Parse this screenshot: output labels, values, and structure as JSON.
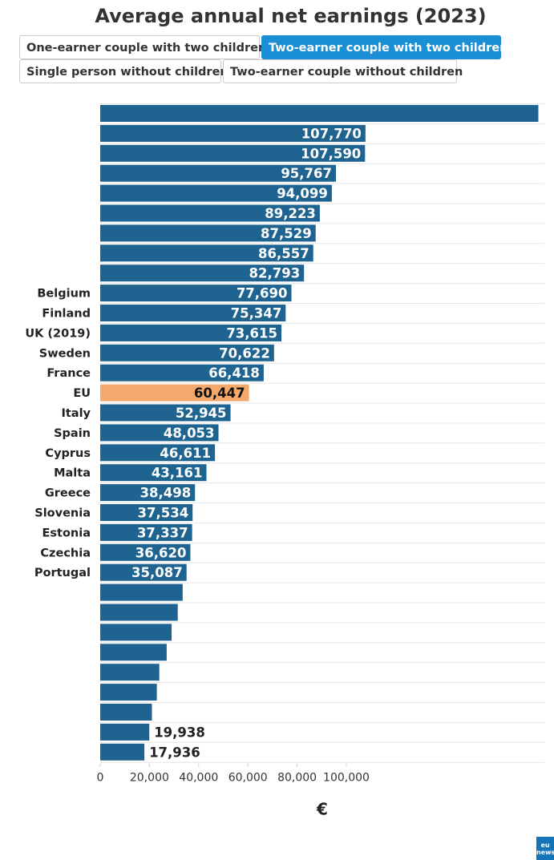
{
  "title": "Average annual net earnings (2023)",
  "tabs": [
    {
      "label": "One-earner couple with two children",
      "active": false
    },
    {
      "label": "Two-earner couple with two children",
      "active": true
    },
    {
      "label": "Single person without children",
      "active": false
    },
    {
      "label": "Two-earner couple without children",
      "active": false
    }
  ],
  "colors": {
    "bar": "#1f6391",
    "highlight": "#f2a96b",
    "accent": "#1a8fd5"
  },
  "logo": "eu news",
  "chart_data": {
    "type": "bar",
    "orientation": "horizontal",
    "xlabel": "€",
    "xlim": [
      0,
      180000
    ],
    "x_ticks": [
      0,
      20000,
      40000,
      60000,
      80000,
      100000
    ],
    "x_tick_labels": [
      "0",
      "20,000",
      "40,000",
      "60,000",
      "80,000",
      "100,000"
    ],
    "grid": true,
    "highlight_category": "EU",
    "categories": [
      "",
      "",
      "",
      "",
      "",
      "",
      "",
      "",
      "",
      "Belgium",
      "Finland",
      "UK (2019)",
      "Sweden",
      "France",
      "EU",
      "Italy",
      "Spain",
      "Cyprus",
      "Malta",
      "Greece",
      "Slovenia",
      "Estonia",
      "Czechia",
      "Portugal",
      "",
      "",
      "",
      "",
      "",
      "",
      "",
      "",
      ""
    ],
    "values": [
      178000,
      107770,
      107590,
      95767,
      94099,
      89223,
      87529,
      86557,
      82793,
      77690,
      75347,
      73615,
      70622,
      66418,
      60447,
      52945,
      48053,
      46611,
      43161,
      38498,
      37534,
      37337,
      36620,
      35087,
      33500,
      31500,
      29000,
      27000,
      24000,
      23000,
      21000,
      19938,
      17936
    ],
    "value_labels": [
      "",
      "107,770",
      "107,590",
      "95,767",
      "94,099",
      "89,223",
      "87,529",
      "86,557",
      "82,793",
      "77,690",
      "75,347",
      "73,615",
      "70,622",
      "66,418",
      "60,447",
      "52,945",
      "48,053",
      "46,611",
      "43,161",
      "38,498",
      "37,534",
      "37,337",
      "36,620",
      "35,087",
      "",
      "",
      "",
      "",
      "",
      "",
      "",
      "19,938",
      "17,936"
    ]
  }
}
